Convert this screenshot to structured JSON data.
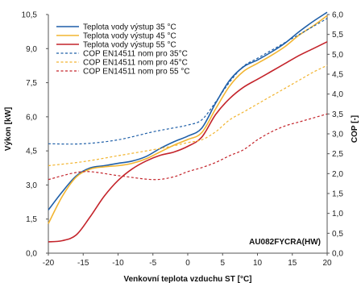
{
  "chart_data": {
    "type": "line",
    "xlabel": "Venkovní teplota vzduchu ST [°C]",
    "ylabel": "Výkon [kW]",
    "y2label": "COP [-]",
    "xlim": [
      -20,
      20
    ],
    "ylim": [
      0,
      10.5
    ],
    "y2lim": [
      0,
      6
    ],
    "xticks": [
      "-20",
      "-15",
      "-10",
      "-5",
      "0",
      "5",
      "10",
      "15",
      "20"
    ],
    "yticks": [
      "0,0",
      "1,5",
      "3,0",
      "4,5",
      "6,0",
      "7,5",
      "9,0",
      "10,5"
    ],
    "y2ticks": [
      "0,0",
      "0,5",
      "1,0",
      "1,5",
      "2,0",
      "2,5",
      "3,0",
      "3,5",
      "4,0",
      "4,5",
      "5,0",
      "5,5",
      "6,0"
    ],
    "grid": false,
    "legend_position": "top-left",
    "annotation": "AU082FYCRA(HW)",
    "series": [
      {
        "name": "Teplota vody výstup 35 °C",
        "axis": "left",
        "style": "solid",
        "color": "#1f5fa8",
        "x": [
          -20,
          -18,
          -16,
          -14,
          -12,
          -10,
          -8,
          -6,
          -4,
          -2,
          0,
          2,
          4,
          6,
          8,
          10,
          12,
          14,
          16,
          18,
          20
        ],
        "y": [
          1.9,
          2.7,
          3.4,
          3.75,
          3.85,
          3.95,
          4.05,
          4.25,
          4.6,
          4.9,
          5.15,
          5.5,
          6.6,
          7.6,
          8.2,
          8.5,
          8.85,
          9.25,
          9.75,
          10.2,
          10.6
        ]
      },
      {
        "name": "Teplota vody výstup 45 °C",
        "axis": "left",
        "style": "solid",
        "color": "#f2b531",
        "x": [
          -20,
          -18,
          -16,
          -14,
          -12,
          -10,
          -8,
          -6,
          -4,
          -2,
          0,
          2,
          4,
          6,
          8,
          10,
          12,
          14,
          16,
          18,
          20
        ],
        "y": [
          1.3,
          2.5,
          3.35,
          3.7,
          3.8,
          3.85,
          3.95,
          4.15,
          4.45,
          4.75,
          5.0,
          5.3,
          6.35,
          7.35,
          8.0,
          8.35,
          8.7,
          9.1,
          9.6,
          10.0,
          10.45
        ]
      },
      {
        "name": "Teplota vody výstup 55 °C",
        "axis": "left",
        "style": "solid",
        "color": "#c4242b",
        "x": [
          -20,
          -18,
          -16,
          -14,
          -12,
          -10,
          -8,
          -6,
          -4,
          -2,
          0,
          2,
          4,
          6,
          8,
          10,
          12,
          14,
          16,
          18,
          20
        ],
        "y": [
          0.5,
          0.55,
          0.8,
          1.6,
          2.5,
          3.2,
          3.7,
          4.05,
          4.3,
          4.45,
          4.7,
          5.1,
          6.1,
          6.8,
          7.3,
          7.65,
          8.0,
          8.35,
          8.7,
          9.0,
          9.3
        ]
      },
      {
        "name": "COP EN14511 nom pro 35°C",
        "axis": "right",
        "style": "dashed",
        "color": "#1f5fa8",
        "x": [
          -20,
          -15,
          -10,
          -5,
          -2,
          0,
          2,
          4,
          6,
          8,
          10,
          12,
          14,
          16,
          18,
          20
        ],
        "y": [
          2.75,
          2.75,
          2.85,
          3.05,
          3.15,
          3.22,
          3.35,
          3.8,
          4.3,
          4.7,
          4.9,
          5.1,
          5.3,
          5.5,
          5.7,
          5.9
        ]
      },
      {
        "name": "COP EN14511 nom pro 45°C",
        "axis": "right",
        "style": "dashed",
        "color": "#f2b531",
        "x": [
          -20,
          -15,
          -10,
          -5,
          -2,
          0,
          2,
          4,
          6,
          8,
          10,
          12,
          14,
          16,
          18,
          20
        ],
        "y": [
          2.2,
          2.3,
          2.45,
          2.6,
          2.7,
          2.78,
          2.85,
          3.05,
          3.35,
          3.55,
          3.75,
          3.95,
          4.15,
          4.35,
          4.55,
          4.72
        ]
      },
      {
        "name": "COP EN14511 nom pro 55 °C",
        "axis": "right",
        "style": "dashed",
        "color": "#c4242b",
        "x": [
          -20,
          -15,
          -10,
          -5,
          -2,
          0,
          2,
          4,
          6,
          8,
          10,
          12,
          14,
          16,
          18,
          20
        ],
        "y": [
          1.85,
          2.05,
          1.95,
          1.85,
          1.92,
          2.05,
          2.15,
          2.28,
          2.45,
          2.6,
          2.85,
          3.05,
          3.2,
          3.3,
          3.4,
          3.5
        ]
      }
    ]
  }
}
